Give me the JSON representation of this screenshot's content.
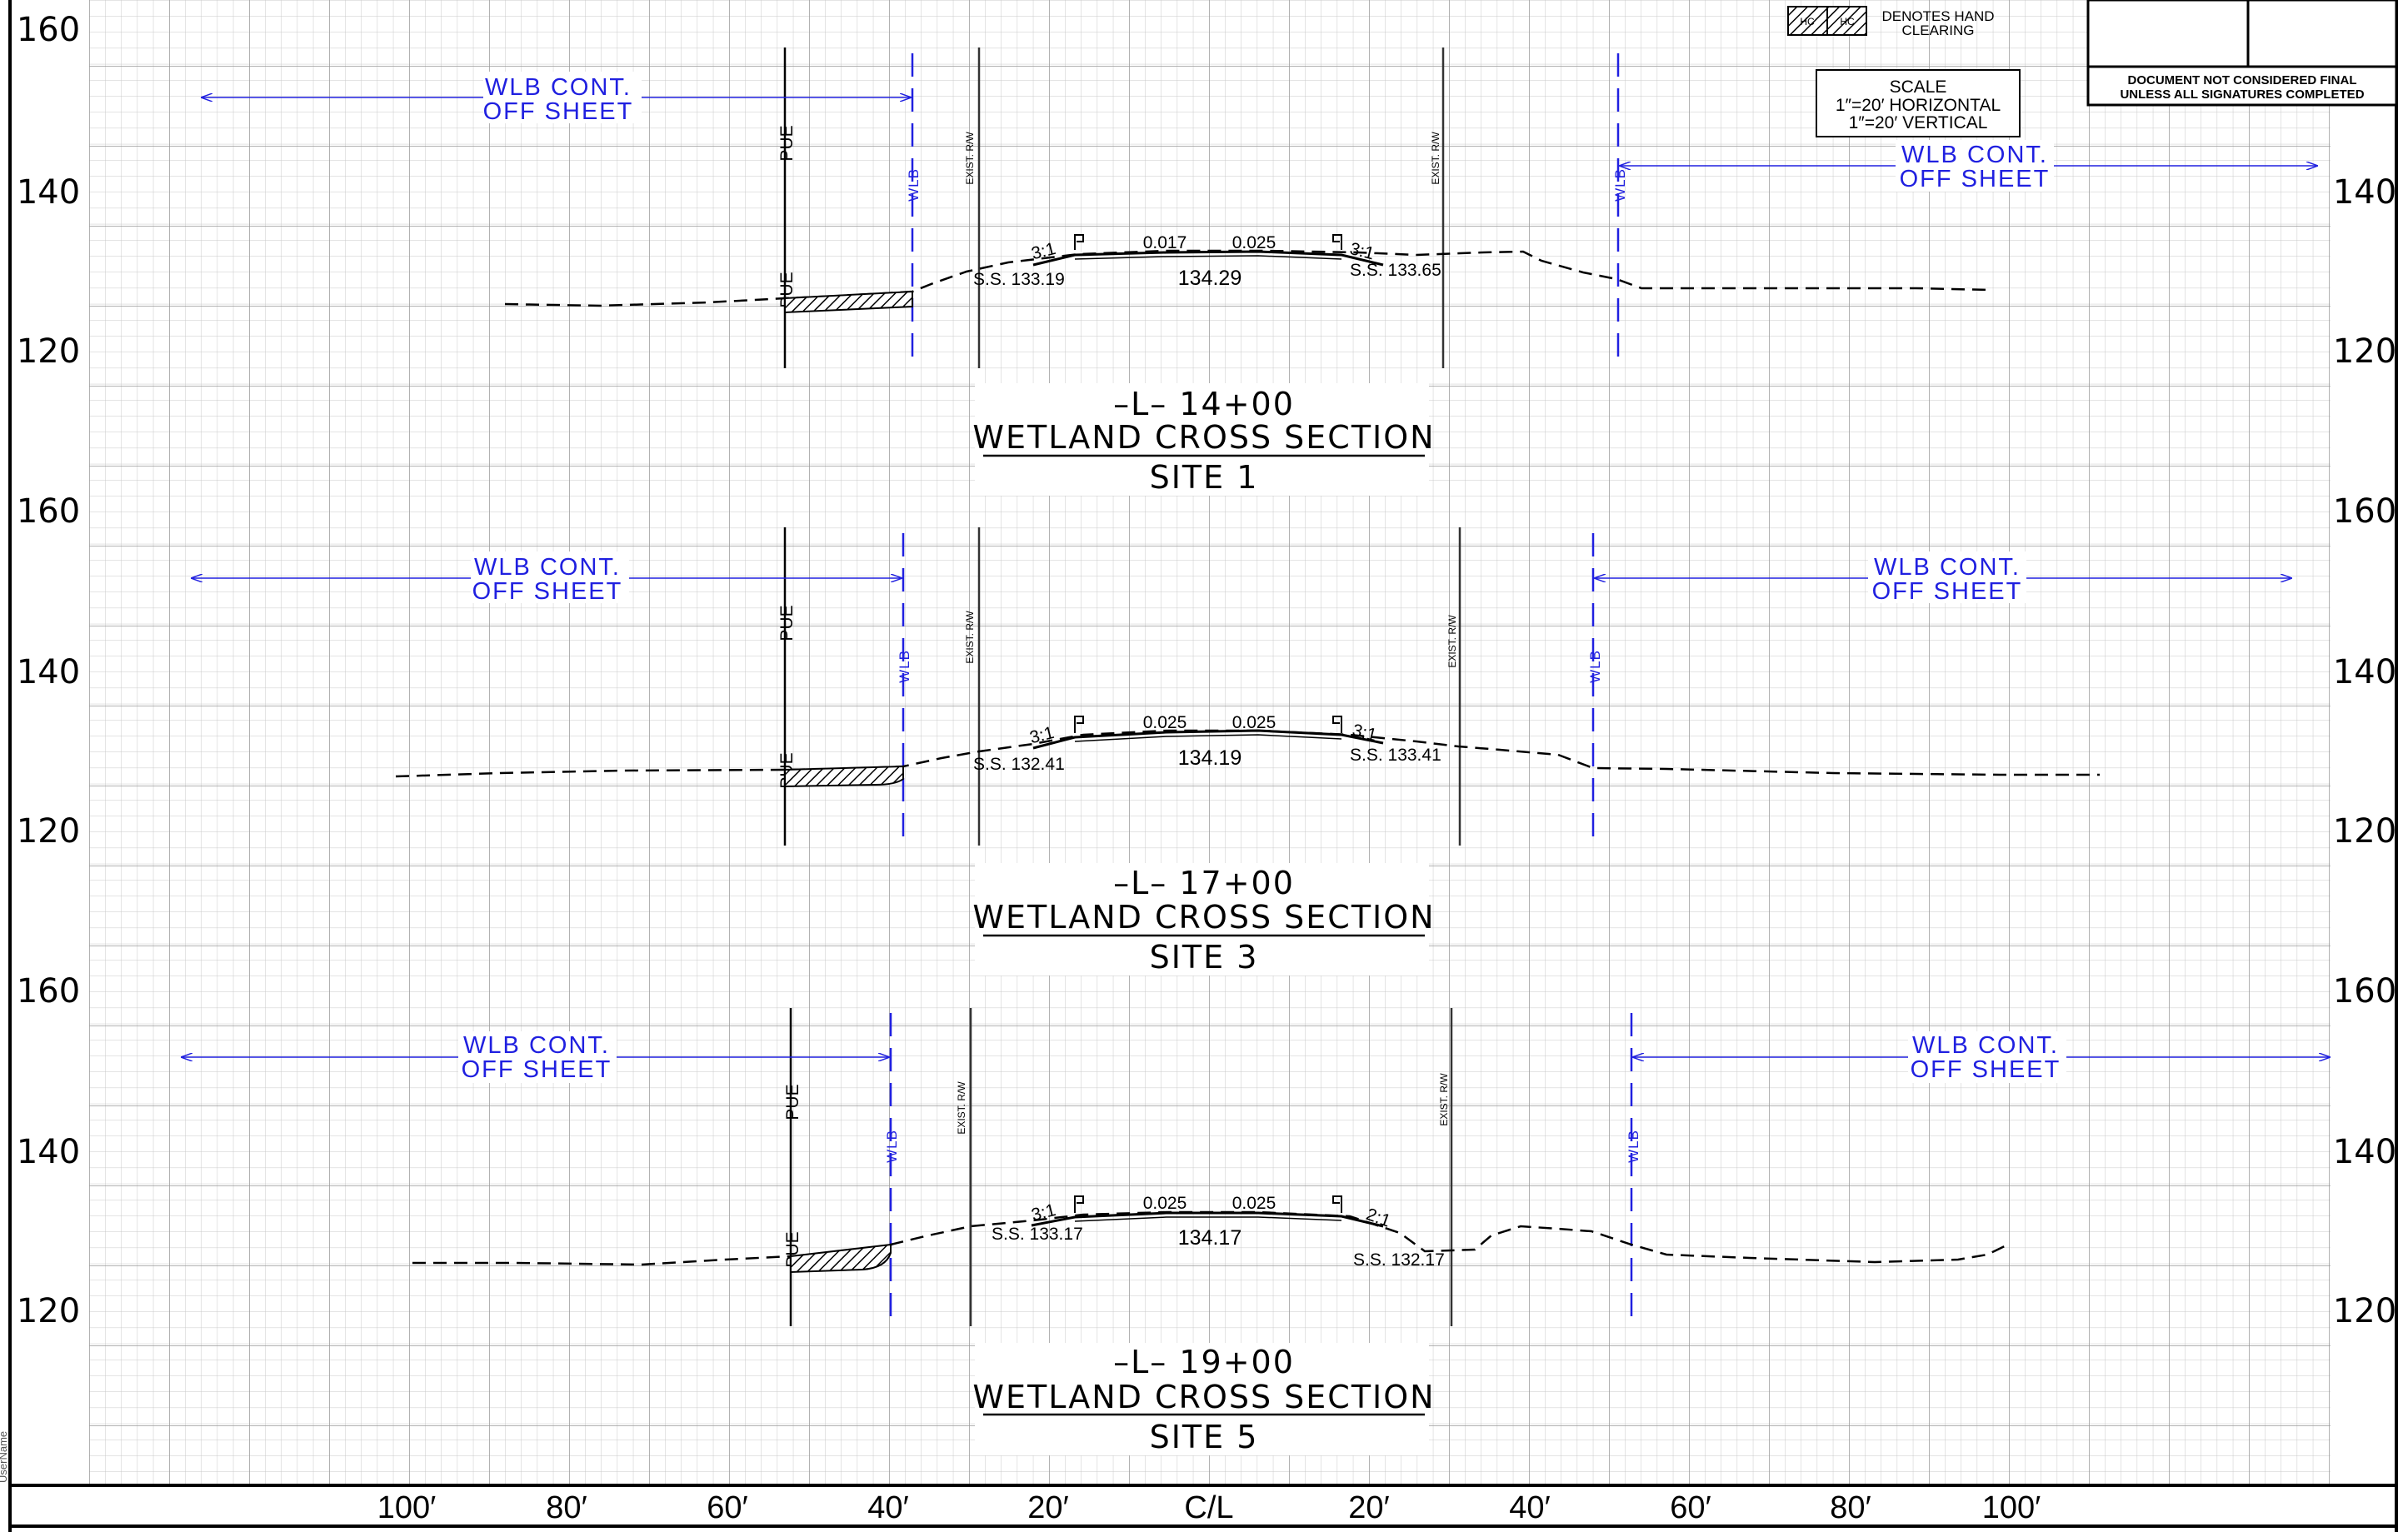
{
  "legend": {
    "hc_left": "HC",
    "hc_right": "HC",
    "label_line1": "DENOTES HAND",
    "label_line2": "CLEARING"
  },
  "title_block": {
    "note_line1": "DOCUMENT NOT CONSIDERED FINAL",
    "note_line2": "UNLESS ALL SIGNATURES COMPLETED"
  },
  "scale_box": {
    "title": "SCALE",
    "horizontal": "1″=20′ HORIZONTAL",
    "vertical": "1″=20′ VERTICAL"
  },
  "station_labels": [
    "100′",
    "80′",
    "60′",
    "40′",
    "20′",
    "C/L",
    "20′",
    "40′",
    "60′",
    "80′",
    "100′"
  ],
  "user_stamp": "UserName",
  "labels": {
    "pue": "PUE",
    "wlb": "WLB",
    "exist_rw": "EXIST. R/W",
    "wlb_cont_line1": "WLB CONT.",
    "wlb_cont_line2": "OFF SHEET"
  },
  "sections": [
    {
      "elev_top": "160",
      "elev_mid": "140",
      "elev_low": "120",
      "station": "–L– 14+00",
      "title": "WETLAND  CROSS  SECTION",
      "site": "SITE 1",
      "left_slope": "3:1",
      "right_slope": "3:1",
      "left_grade": "0.017",
      "right_grade": "0.025",
      "left_ss": "S.S. 133.19",
      "right_ss": "S.S. 133.65",
      "cl_elev": "134.29"
    },
    {
      "elev_top": "160",
      "elev_mid": "140",
      "elev_low": "120",
      "station": "–L– 17+00",
      "title": "WETLAND  CROSS  SECTION",
      "site": "SITE 3",
      "left_slope": "3:1",
      "right_slope": "3:1",
      "left_grade": "0.025",
      "right_grade": "0.025",
      "left_ss": "S.S. 132.41",
      "right_ss": "S.S. 133.41",
      "cl_elev": "134.19"
    },
    {
      "elev_top": "160",
      "elev_mid": "140",
      "elev_low": "120",
      "station": "–L– 19+00",
      "title": "WETLAND  CROSS  SECTION",
      "site": "SITE 5",
      "left_slope": "3:1",
      "right_slope": "2:1",
      "left_grade": "0.025",
      "right_grade": "0.025",
      "left_ss": "S.S. 133.17",
      "right_ss": "S.S. 132.17",
      "cl_elev": "134.17"
    }
  ]
}
